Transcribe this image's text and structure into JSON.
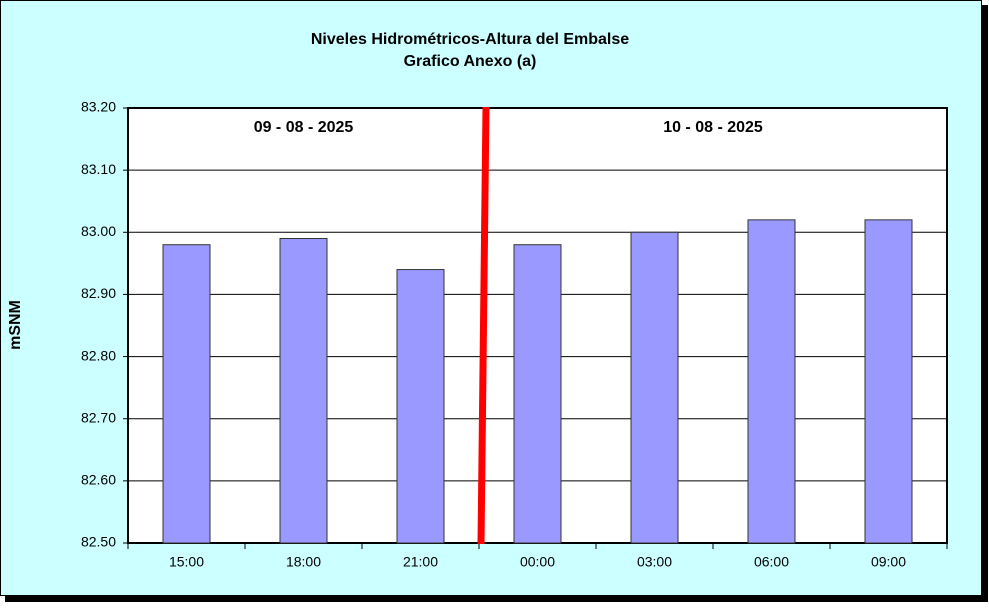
{
  "chart_data": {
    "type": "bar",
    "title": "Niveles Hidrométricos-Altura del Embalse",
    "subtitle": "Grafico Anexo (a)",
    "y_label": "mSNM",
    "annotations": [
      "09 - 08 - 2025",
      "10 - 08 - 2025"
    ],
    "categories": [
      "15:00",
      "18:00",
      "21:00",
      "00:00",
      "03:00",
      "06:00",
      "09:00"
    ],
    "values": [
      82.98,
      82.99,
      82.94,
      82.98,
      83.0,
      83.02,
      83.02
    ],
    "color": "#9999ff",
    "ylim": [
      82.5,
      83.2
    ],
    "yticks": [
      {
        "value": 82.5,
        "label": "82.50"
      },
      {
        "value": 82.6,
        "label": "82.60"
      },
      {
        "value": 82.7,
        "label": "82.70"
      },
      {
        "value": 82.8,
        "label": "82.80"
      },
      {
        "value": 82.9,
        "label": "82.90"
      },
      {
        "value": 83.0,
        "label": "83.00"
      },
      {
        "value": 83.1,
        "label": "83.10"
      },
      {
        "value": 83.2,
        "label": "83.20"
      }
    ],
    "grid": true
  }
}
